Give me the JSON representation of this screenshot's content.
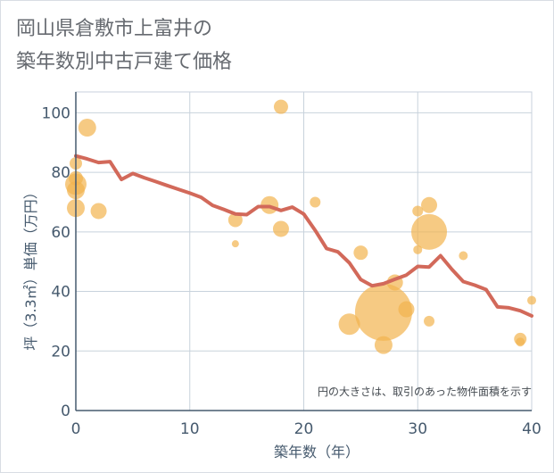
{
  "title_line1": "岡山県倉敷市上富井の",
  "title_line2": "築年数別中古戸建て価格",
  "chart_data": {
    "type": "scatter+line",
    "xlabel": "築年数（年）",
    "ylabel": "坪（3.3㎡）単価（万円）",
    "xlim": [
      0,
      40
    ],
    "ylim": [
      0,
      107
    ],
    "xticks": [
      0,
      10,
      20,
      30,
      40
    ],
    "yticks": [
      0,
      20,
      40,
      60,
      80,
      100
    ],
    "grid": true,
    "annotation": "円の大きさは、取引のあった物件面積を示す",
    "colors": {
      "bubble": "#f2b44f",
      "line": "#d2695a",
      "grid": "#c8d2dc",
      "axis": "#465a6e"
    },
    "bubbles": [
      {
        "x": 0,
        "y": 68,
        "size": 10
      },
      {
        "x": 0,
        "y": 74,
        "size": 10
      },
      {
        "x": 0,
        "y": 76,
        "size": 12
      },
      {
        "x": 0,
        "y": 78,
        "size": 8
      },
      {
        "x": 0,
        "y": 83,
        "size": 7
      },
      {
        "x": 1,
        "y": 95,
        "size": 10
      },
      {
        "x": 2,
        "y": 67,
        "size": 9
      },
      {
        "x": 14,
        "y": 64,
        "size": 8
      },
      {
        "x": 14,
        "y": 56,
        "size": 4
      },
      {
        "x": 17,
        "y": 69,
        "size": 10
      },
      {
        "x": 18,
        "y": 102,
        "size": 8
      },
      {
        "x": 18,
        "y": 61,
        "size": 9
      },
      {
        "x": 21,
        "y": 70,
        "size": 6
      },
      {
        "x": 24,
        "y": 29,
        "size": 12
      },
      {
        "x": 25,
        "y": 53,
        "size": 8
      },
      {
        "x": 27,
        "y": 33,
        "size": 32
      },
      {
        "x": 27,
        "y": 22,
        "size": 10
      },
      {
        "x": 28,
        "y": 43,
        "size": 9
      },
      {
        "x": 29,
        "y": 34,
        "size": 9
      },
      {
        "x": 30,
        "y": 67,
        "size": 6
      },
      {
        "x": 30,
        "y": 54,
        "size": 5
      },
      {
        "x": 31,
        "y": 60,
        "size": 20
      },
      {
        "x": 31,
        "y": 69,
        "size": 9
      },
      {
        "x": 31,
        "y": 30,
        "size": 6
      },
      {
        "x": 34,
        "y": 52,
        "size": 5
      },
      {
        "x": 39,
        "y": 24,
        "size": 7
      },
      {
        "x": 39,
        "y": 23,
        "size": 5
      },
      {
        "x": 40,
        "y": 37,
        "size": 5
      }
    ],
    "trend": {
      "x": [
        0,
        1,
        2,
        3,
        4,
        5,
        6,
        7,
        8,
        9,
        10,
        11,
        12,
        13,
        14,
        15,
        16,
        17,
        18,
        19,
        20,
        21,
        22,
        23,
        24,
        25,
        26,
        27,
        28,
        29,
        30,
        31,
        32,
        33,
        34,
        35,
        36,
        37,
        38,
        39,
        40
      ],
      "y": [
        85.5,
        84.5,
        83.3,
        83.6,
        77.6,
        79.6,
        78.2,
        76.9,
        75.6,
        74.3,
        73,
        71.6,
        68.9,
        67.5,
        66,
        65.8,
        68.5,
        68.5,
        67.2,
        68.3,
        66,
        60.5,
        54.4,
        53.3,
        49.6,
        44,
        41.9,
        42.6,
        44.1,
        45.5,
        48.4,
        48.2,
        52,
        47.4,
        43.3,
        42.1,
        40.6,
        34.8,
        34.5,
        33.5,
        31.8
      ]
    }
  }
}
